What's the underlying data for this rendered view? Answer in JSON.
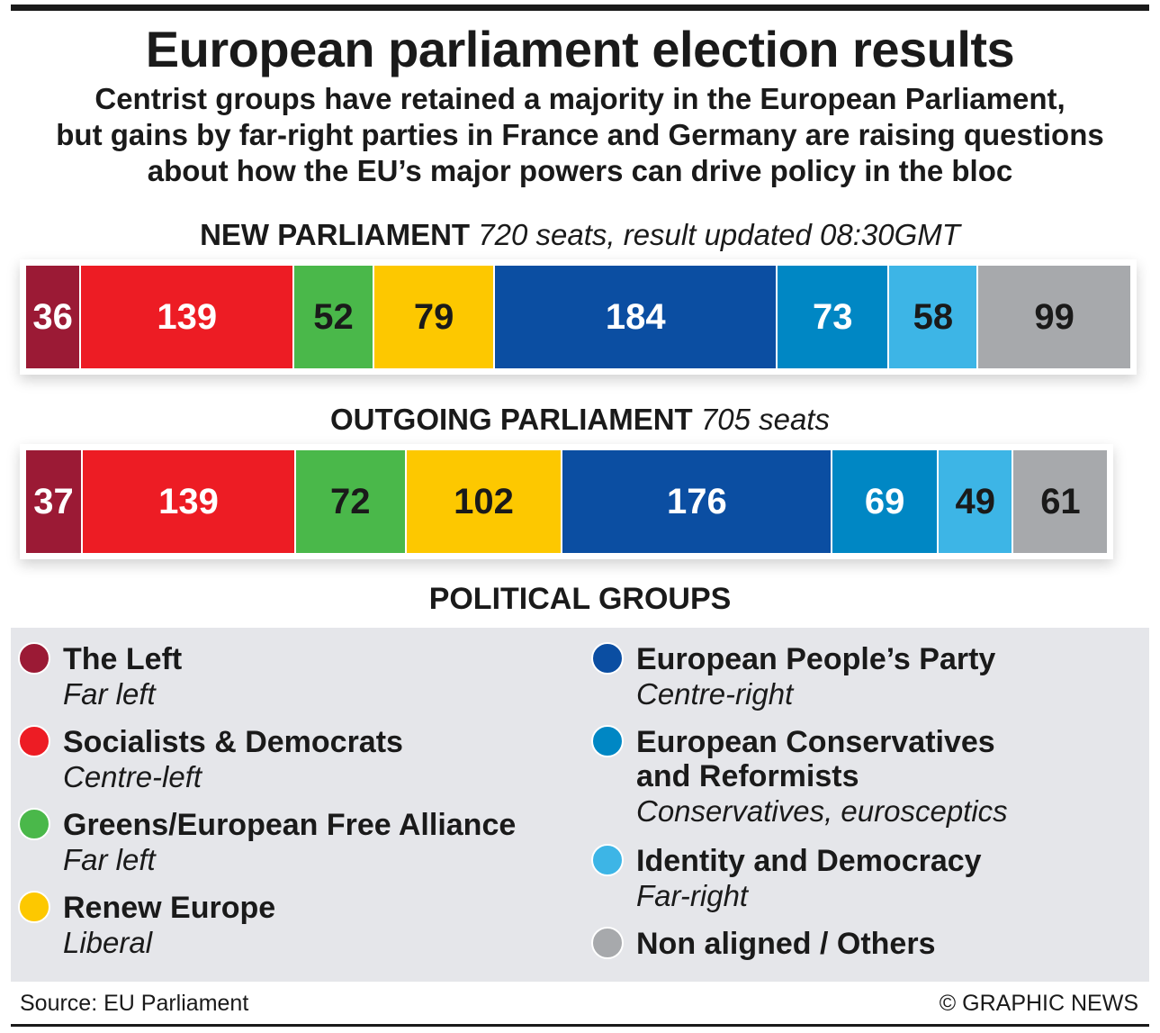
{
  "title": "European parliament election results",
  "subtitle": [
    "Centrist groups have retained a majority in the European Parliament,",
    "but gains by far-right parties in France and Germany are raising questions",
    "about how the EU’s major powers can drive policy in the bloc"
  ],
  "chart_data": {
    "type": "bar",
    "stacked": true,
    "orientation": "horizontal",
    "categories": [
      "The Left",
      "Socialists & Democrats",
      "Greens/European Free Alliance",
      "Renew Europe",
      "European People’s Party",
      "European Conservatives and Reformists",
      "Identity and Democracy",
      "Non aligned / Others"
    ],
    "colors": [
      "#9b1a35",
      "#ed1c24",
      "#4ab84a",
      "#fdc800",
      "#0b4ea2",
      "#0087c4",
      "#3db5e6",
      "#a7a9ac"
    ],
    "label_colors": [
      "#ffffff",
      "#ffffff",
      "#1a1a1a",
      "#1a1a1a",
      "#ffffff",
      "#ffffff",
      "#1a1a1a",
      "#1a1a1a"
    ],
    "bars": [
      {
        "heading": "NEW PARLIAMENT",
        "note": "720 seats, result updated 08:30GMT",
        "values": [
          36,
          139,
          52,
          79,
          184,
          73,
          58,
          99
        ]
      },
      {
        "heading": "OUTGOING PARLIAMENT",
        "note": "705 seats",
        "values": [
          37,
          139,
          72,
          102,
          176,
          69,
          49,
          61
        ]
      }
    ]
  },
  "legend": {
    "title": "POLITICAL GROUPS",
    "items": [
      {
        "name": "The Left",
        "desc": "Far left",
        "color": "#9b1a35"
      },
      {
        "name": "Socialists & Democrats",
        "desc": "Centre-left",
        "color": "#ed1c24"
      },
      {
        "name": "Greens/European Free Alliance",
        "desc": "Far left",
        "color": "#4ab84a"
      },
      {
        "name": "Renew Europe",
        "desc": "Liberal",
        "color": "#fdc800"
      },
      {
        "name": "European People’s Party",
        "desc": "Centre-right",
        "color": "#0b4ea2"
      },
      {
        "name": "European Conservatives\nand Reformists",
        "desc": "Conservatives, eurosceptics",
        "color": "#0087c4"
      },
      {
        "name": "Identity and Democracy",
        "desc": "Far-right",
        "color": "#3db5e6"
      },
      {
        "name": "Non aligned / Others",
        "desc": "",
        "color": "#a7a9ac"
      }
    ]
  },
  "footer": {
    "source": "Source: EU Parliament",
    "credit": "© GRAPHIC NEWS"
  }
}
